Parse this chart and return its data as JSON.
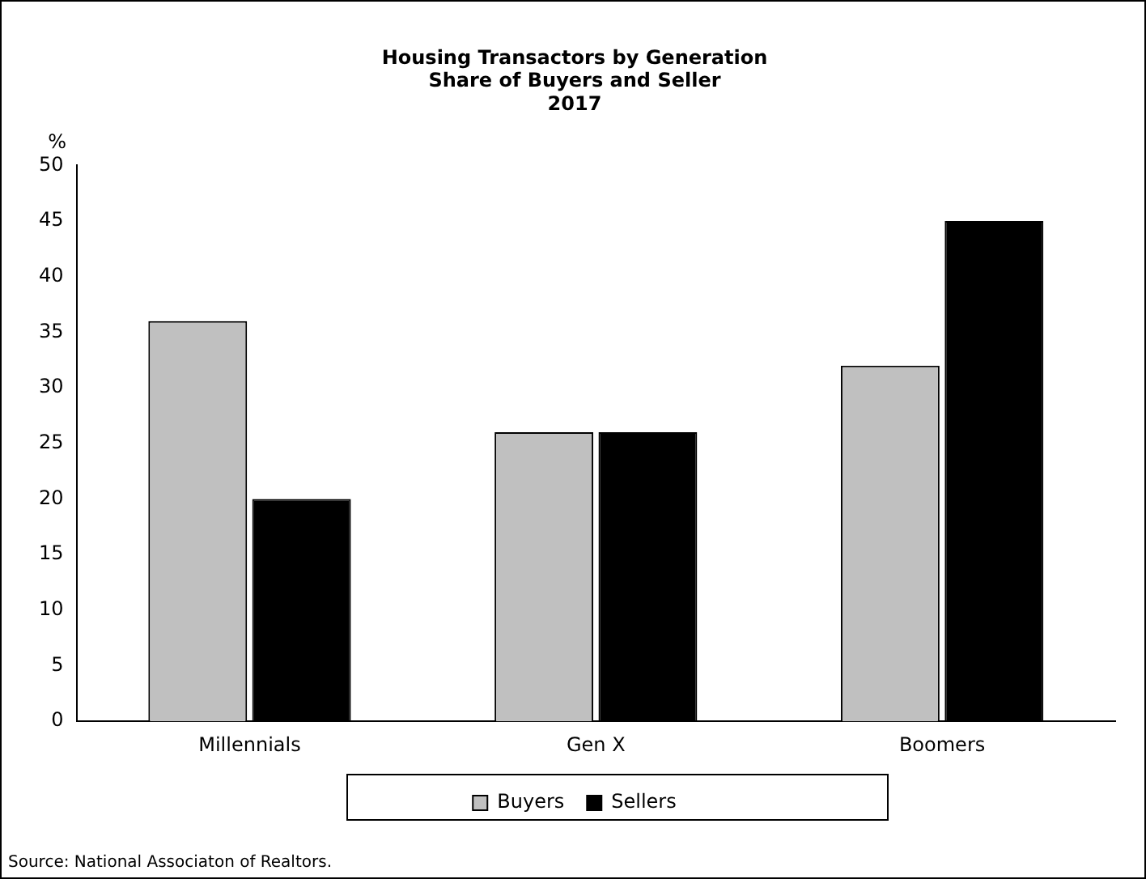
{
  "chart_data": {
    "type": "bar",
    "title": [
      "Housing Transactors by Generation",
      "Share of Buyers and Seller",
      "2017"
    ],
    "ylabel": "%",
    "categories": [
      "Millennials",
      "Gen X",
      "Boomers"
    ],
    "series": [
      {
        "name": "Buyers",
        "color": "#c0c0c0",
        "values": [
          36,
          26,
          32
        ]
      },
      {
        "name": "Sellers",
        "color": "#000000",
        "values": [
          20,
          26,
          45
        ]
      }
    ],
    "ylim": [
      0,
      50
    ],
    "yticks": [
      0,
      5,
      10,
      15,
      20,
      25,
      30,
      35,
      40,
      45,
      50
    ],
    "grid": false,
    "legend": "bottom",
    "annotations": [
      "Source: National Associaton of Realtors."
    ]
  }
}
